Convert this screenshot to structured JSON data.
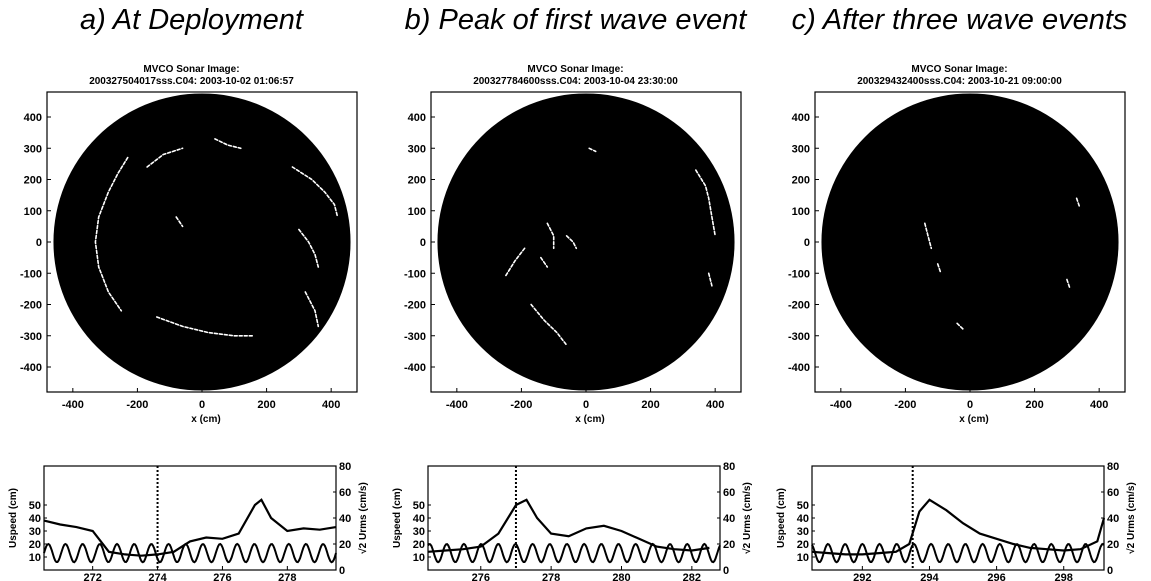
{
  "chart_data": [
    {
      "type": "scatter",
      "panel_title": "a) At Deployment",
      "sonar_title": "MVCO Sonar Image:",
      "sonar_subtitle": "200327504017sss.C04: 2003-10-02 01:06:57",
      "xlabel": "x (cm)",
      "ylabel": "",
      "xlim": [
        -480,
        480
      ],
      "ylim": [
        -480,
        480
      ],
      "xticks": [
        -400,
        -200,
        0,
        200,
        400
      ],
      "yticks": [
        400,
        300,
        200,
        100,
        0,
        -100,
        -200,
        -300,
        -400
      ],
      "disk_radius_cm": 460,
      "features": [
        {
          "points": [
            [
              -230,
              270
            ],
            [
              -260,
              220
            ],
            [
              -290,
              160
            ],
            [
              -320,
              80
            ],
            [
              -330,
              0
            ],
            [
              -320,
              -80
            ],
            [
              -290,
              -160
            ],
            [
              -250,
              -220
            ]
          ]
        },
        {
          "points": [
            [
              -170,
              240
            ],
            [
              -120,
              280
            ],
            [
              -60,
              300
            ]
          ]
        },
        {
          "points": [
            [
              40,
              330
            ],
            [
              80,
              310
            ],
            [
              120,
              300
            ]
          ]
        },
        {
          "points": [
            [
              280,
              240
            ],
            [
              340,
              200
            ],
            [
              380,
              160
            ],
            [
              410,
              120
            ],
            [
              420,
              80
            ]
          ]
        },
        {
          "points": [
            [
              300,
              40
            ],
            [
              330,
              0
            ],
            [
              350,
              -40
            ],
            [
              360,
              -80
            ]
          ]
        },
        {
          "points": [
            [
              -140,
              -240
            ],
            [
              -60,
              -270
            ],
            [
              20,
              -290
            ],
            [
              100,
              -300
            ],
            [
              160,
              -300
            ]
          ]
        },
        {
          "points": [
            [
              320,
              -160
            ],
            [
              350,
              -220
            ],
            [
              360,
              -270
            ]
          ]
        },
        {
          "points": [
            [
              -80,
              80
            ],
            [
              -60,
              50
            ]
          ]
        }
      ],
      "bottom": {
        "ylabel_left": "Uspeed (cm)",
        "ylabel_right": "√2 Urms (cm/s)",
        "xlim": [
          270.5,
          279.5
        ],
        "xticks": [
          272,
          274,
          276,
          278
        ],
        "yticks_left": [
          10,
          20,
          30,
          40,
          50
        ],
        "yticks_right": [
          0,
          20,
          40,
          60,
          80
        ],
        "ylim": [
          0,
          80
        ],
        "marker_x": 274,
        "series": [
          {
            "x": [
              270.5,
              271,
              271.5,
              272,
              272.5,
              273,
              273.5,
              274,
              274.5,
              275,
              275.5,
              276,
              276.5,
              277,
              277.2,
              277.5,
              278,
              278.5,
              279,
              279.5
            ],
            "values": [
              38,
              35,
              33,
              30,
              14,
              12,
              11,
              12,
              14,
              22,
              25,
              24,
              28,
              50,
              54,
              40,
              30,
              32,
              31,
              33
            ]
          }
        ]
      }
    },
    {
      "type": "scatter",
      "panel_title": "b) Peak of first wave event",
      "sonar_title": "MVCO Sonar Image:",
      "sonar_subtitle": "200327784600sss.C04: 2003-10-04 23:30:00",
      "xlabel": "x (cm)",
      "ylabel": "",
      "xlim": [
        -480,
        480
      ],
      "ylim": [
        -480,
        480
      ],
      "xticks": [
        -400,
        -200,
        0,
        200,
        400
      ],
      "yticks": [
        400,
        300,
        200,
        100,
        0,
        -100,
        -200,
        -300,
        -400
      ],
      "disk_radius_cm": 460,
      "features": [
        {
          "points": [
            [
              -190,
              -20
            ],
            [
              -220,
              -60
            ],
            [
              -250,
              -110
            ]
          ]
        },
        {
          "points": [
            [
              -140,
              -50
            ],
            [
              -120,
              -80
            ]
          ]
        },
        {
          "points": [
            [
              -120,
              60
            ],
            [
              -100,
              20
            ],
            [
              -100,
              -20
            ]
          ]
        },
        {
          "points": [
            [
              -170,
              -200
            ],
            [
              -130,
              -250
            ],
            [
              -90,
              -290
            ],
            [
              -60,
              -330
            ]
          ]
        },
        {
          "points": [
            [
              -60,
              20
            ],
            [
              -40,
              0
            ],
            [
              -30,
              -20
            ]
          ]
        },
        {
          "points": [
            [
              340,
              230
            ],
            [
              370,
              180
            ],
            [
              380,
              140
            ],
            [
              390,
              80
            ],
            [
              400,
              20
            ]
          ]
        },
        {
          "points": [
            [
              380,
              -100
            ],
            [
              390,
              -140
            ]
          ]
        },
        {
          "points": [
            [
              10,
              300
            ],
            [
              30,
              290
            ]
          ]
        }
      ],
      "bottom": {
        "ylabel_left": "Uspeed (cm)",
        "ylabel_right": "√2 Urms (cm/s)",
        "xlim": [
          274.5,
          282.8
        ],
        "xticks": [
          276,
          278,
          280,
          282
        ],
        "yticks_left": [
          10,
          20,
          30,
          40,
          50
        ],
        "yticks_right": [
          0,
          20,
          40,
          60,
          80
        ],
        "ylim": [
          0,
          80
        ],
        "marker_x": 277,
        "series": [
          {
            "x": [
              274.5,
              275,
              275.5,
              276,
              276.5,
              277,
              277.3,
              277.6,
              278,
              278.5,
              279,
              279.5,
              280,
              280.5,
              281,
              281.5,
              282,
              282.5
            ],
            "values": [
              14,
              15,
              16,
              18,
              28,
              50,
              54,
              40,
              28,
              26,
              32,
              34,
              30,
              24,
              18,
              16,
              15,
              17
            ]
          }
        ]
      }
    },
    {
      "type": "scatter",
      "panel_title": "c) After three wave events",
      "sonar_title": "MVCO Sonar Image:",
      "sonar_subtitle": "200329432400sss.C04: 2003-10-21 09:00:00",
      "xlabel": "x (cm)",
      "ylabel": "",
      "xlim": [
        -480,
        480
      ],
      "ylim": [
        -480,
        480
      ],
      "xticks": [
        -400,
        -200,
        0,
        200,
        400
      ],
      "yticks": [
        400,
        300,
        200,
        100,
        0,
        -100,
        -200,
        -300,
        -400
      ],
      "disk_radius_cm": 460,
      "features": [
        {
          "points": [
            [
              -140,
              60
            ],
            [
              -130,
              20
            ],
            [
              -120,
              -20
            ]
          ]
        },
        {
          "points": [
            [
              -100,
              -70
            ],
            [
              -90,
              -100
            ]
          ]
        },
        {
          "points": [
            [
              330,
              140
            ],
            [
              340,
              110
            ]
          ]
        },
        {
          "points": [
            [
              300,
              -120
            ],
            [
              310,
              -150
            ]
          ]
        },
        {
          "points": [
            [
              -40,
              -260
            ],
            [
              -20,
              -280
            ]
          ]
        }
      ],
      "bottom": {
        "ylabel_left": "Uspeed (cm)",
        "ylabel_right": "√2 Urms (cm/s)",
        "xlim": [
          290.5,
          299.2
        ],
        "xticks": [
          292,
          294,
          296,
          298
        ],
        "yticks_left": [
          10,
          20,
          30,
          40,
          50
        ],
        "yticks_right": [
          0,
          20,
          40,
          60,
          80
        ],
        "ylim": [
          0,
          80
        ],
        "marker_x": 293.5,
        "series": [
          {
            "x": [
              290.5,
              291,
              291.5,
              292,
              292.5,
              293,
              293.4,
              293.7,
              294,
              294.5,
              295,
              295.5,
              296,
              296.5,
              297,
              297.5,
              298,
              298.5,
              299,
              299.2
            ],
            "values": [
              14,
              13,
              12,
              12,
              13,
              14,
              20,
              45,
              54,
              46,
              36,
              28,
              24,
              20,
              17,
              16,
              15,
              16,
              22,
              40
            ]
          }
        ]
      }
    }
  ]
}
